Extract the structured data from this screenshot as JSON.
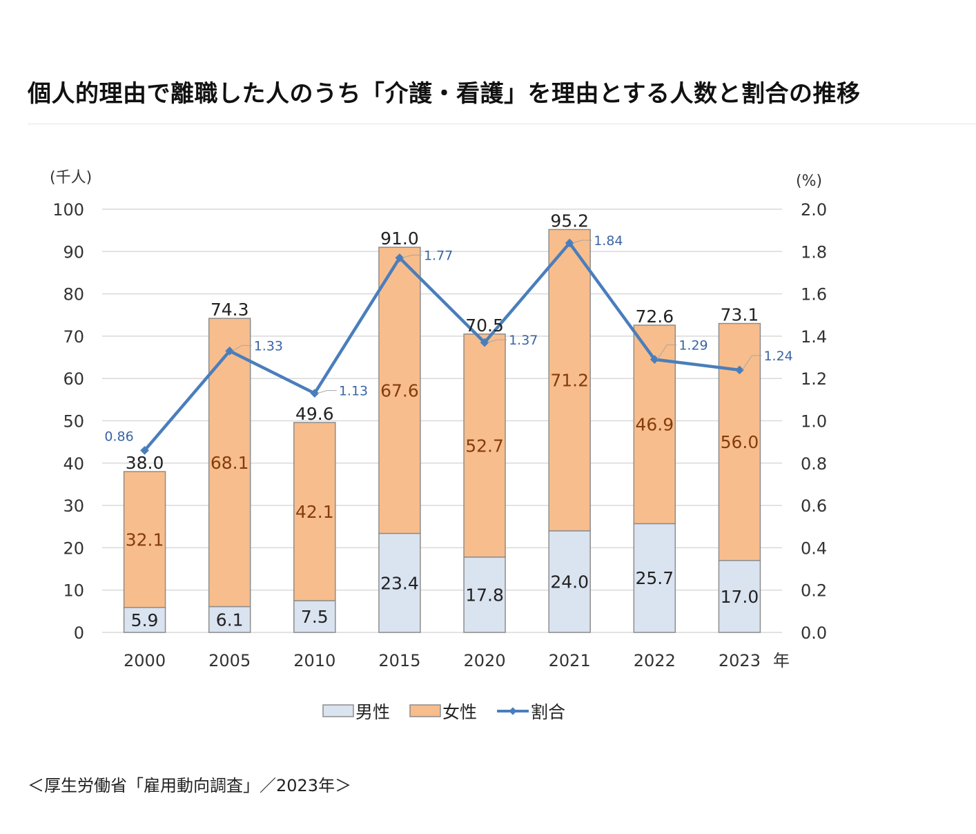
{
  "page": {
    "title": "個人的理由で離職した人のうち「介護・看護」を理由とする人数と割合の推移",
    "source": "＜厚生労働省「雇用動向調査」／2023年＞"
  },
  "colors": {
    "male": "#dae3f0",
    "female": "#f8bd8c",
    "ratio_line": "#4a7ebb",
    "bar_border": "#8c8c8c",
    "gridline": "#d9d9d9",
    "female_label": "#843c0c",
    "ratio_label": "#3a64a4"
  },
  "chart_data": {
    "type": "bar",
    "subtype": "stacked-bar-with-line",
    "title": "個人的理由で離職した人のうち「介護・看護」を理由とする人数と割合の推移",
    "categories": [
      "2000",
      "2005",
      "2010",
      "2015",
      "2020",
      "2021",
      "2022",
      "2023"
    ],
    "x_unit": "年",
    "series": [
      {
        "name": "男性",
        "type": "bar",
        "axis": "left",
        "values": [
          5.9,
          6.1,
          7.5,
          23.4,
          17.8,
          24.0,
          25.7,
          17.0
        ]
      },
      {
        "name": "女性",
        "type": "bar",
        "axis": "left",
        "values": [
          32.1,
          68.1,
          42.1,
          67.6,
          52.7,
          71.2,
          46.9,
          56.0
        ]
      },
      {
        "name": "割合",
        "type": "line",
        "axis": "right",
        "values": [
          0.86,
          1.33,
          1.13,
          1.77,
          1.37,
          1.84,
          1.29,
          1.24
        ]
      }
    ],
    "totals": [
      38.0,
      74.3,
      49.6,
      91.0,
      70.5,
      95.2,
      72.6,
      73.1
    ],
    "left_axis": {
      "label": "(千人)",
      "ylim": [
        0,
        100
      ],
      "ticks": [
        0,
        10,
        20,
        30,
        40,
        50,
        60,
        70,
        80,
        90,
        100
      ]
    },
    "right_axis": {
      "label": "(%)",
      "ylim": [
        0,
        2.0
      ],
      "ticks": [
        "0.0",
        "0.2",
        "0.4",
        "0.6",
        "0.8",
        "1.0",
        "1.2",
        "1.4",
        "1.6",
        "1.8",
        "2.0"
      ]
    },
    "grid": true,
    "legend": {
      "position": "bottom",
      "entries": [
        "男性",
        "女性",
        "割合"
      ]
    }
  }
}
